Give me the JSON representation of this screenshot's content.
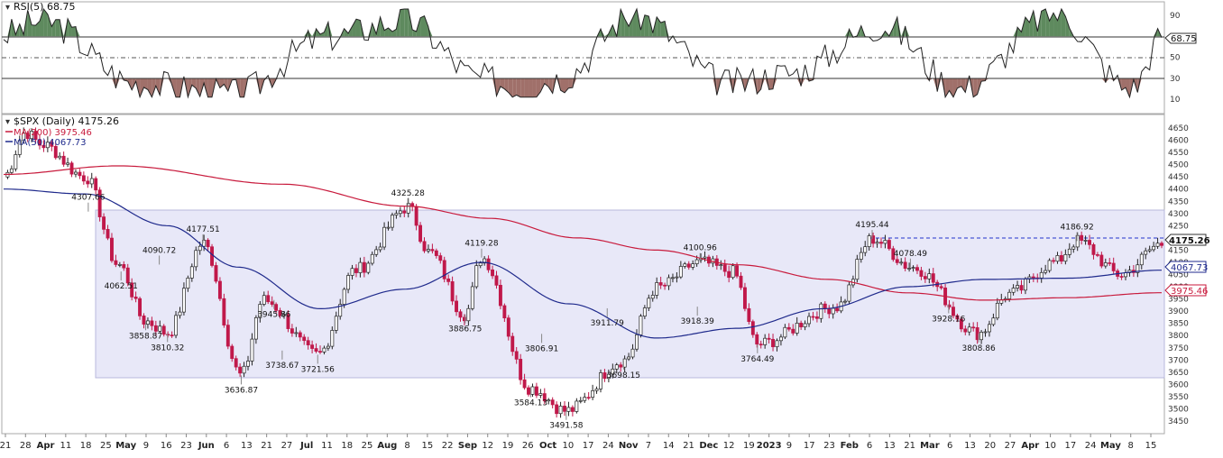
{
  "rsi_panel": {
    "header": "RSI(5) 68.75",
    "last_value": "68.75",
    "ticks": [
      "90",
      "70",
      "50",
      "30",
      "10"
    ]
  },
  "price_panel": {
    "header": "$SPX (Daily) 4175.26",
    "ma200_label": "MA(200) 3975.46",
    "ma50_label": "MA(50) 4067.73",
    "last_price_label": "4175.26",
    "last_ma50_label": "4067.73",
    "last_ma200_label": "3975.46",
    "ticks": [
      "4650",
      "4600",
      "4550",
      "4500",
      "4450",
      "4400",
      "4350",
      "4300",
      "4250",
      "4200",
      "4150",
      "4100",
      "4050",
      "4000",
      "3950",
      "3900",
      "3850",
      "3800",
      "3750",
      "3700",
      "3650",
      "3600",
      "3550",
      "3500",
      "3450"
    ]
  },
  "x_axis_labels": [
    "21",
    "28",
    "Apr",
    "11",
    "18",
    "25",
    "May",
    "9",
    "16",
    "23",
    "Jun",
    "6",
    "13",
    "21",
    "27",
    "Jul",
    "11",
    "18",
    "25",
    "Aug",
    "8",
    "15",
    "22",
    "Sep",
    "12",
    "19",
    "26",
    "Oct",
    "10",
    "17",
    "24",
    "Nov",
    "7",
    "14",
    "21",
    "Dec",
    "12",
    "19",
    "2023",
    "9",
    "17",
    "23",
    "Feb",
    "6",
    "13",
    "21",
    "Mar",
    "6",
    "13",
    "20",
    "27",
    "Apr",
    "10",
    "17",
    "24",
    "May",
    "8",
    "15"
  ],
  "colors": {
    "up": "#ffffff",
    "down": "#c0184a",
    "ma200": "#c81a3c",
    "ma50": "#1f2a8c",
    "band": "#e8e8f8",
    "rsi_over": "#5e8a5e",
    "rsi_under": "#a0706a",
    "resistance": "#2233cc"
  },
  "chart_data": [
    {
      "type": "line",
      "title": "RSI(5) 68.75",
      "ylim": [
        0,
        100
      ],
      "reference_lines": [
        70,
        50,
        30
      ],
      "series": [
        {
          "name": "RSI(5)",
          "x": [
            "Mar 21 2022",
            "Apr 4 2022",
            "May 9 2022",
            "Jun 13 2022",
            "Jul 18 2022",
            "Aug 15 2022",
            "Sep 12 2022",
            "Sep 26 2022",
            "Oct 10 2022",
            "Nov 7 2022",
            "Dec 12 2022",
            "Jan 3 2023",
            "Feb 6 2023",
            "Mar 6 2023",
            "Apr 10 2023",
            "May 8 2023",
            "May 19 2023"
          ],
          "values": [
            72,
            85,
            25,
            15,
            70,
            85,
            30,
            20,
            30,
            90,
            25,
            35,
            80,
            20,
            92,
            20,
            68.75
          ]
        }
      ]
    },
    {
      "type": "line",
      "title": "$SPX (Daily) 4175.26",
      "ylim": [
        3450,
        4650
      ],
      "series": [
        {
          "name": "$SPX",
          "x": [
            "Mar 21 2022",
            "Mar 29 2022",
            "Apr 4 2022",
            "Apr 20 2022",
            "May 2 2022",
            "May 12 2022",
            "May 20 2022",
            "Jun 2 2022",
            "Jun 16 2022",
            "Jun 24 2022",
            "Jul 14 2022",
            "Jul 28 2022",
            "Aug 16 2022",
            "Aug 24 2022",
            "Sep 6 2022",
            "Sep 12 2022",
            "Sep 30 2022",
            "Oct 13 2022",
            "Nov 3 2022",
            "Nov 15 2022",
            "Dec 1 2022",
            "Dec 13 2022",
            "Dec 22 2022",
            "Jan 20 2023",
            "Feb 2 2023",
            "Feb 17 2023",
            "Mar 13 2023",
            "Mar 24 2023",
            "Apr 10 2023",
            "Apr 18 2023",
            "May 4 2023",
            "May 19 2023"
          ],
          "values": [
            4450,
            4632,
            4582,
            4450,
            4090,
            3858.87,
            3810.32,
            4177.51,
            3636.87,
            3945.86,
            3721.56,
            4070,
            4325.28,
            4140,
            3886.75,
            4119.28,
            3584.13,
            3491.58,
            3698.15,
            3995,
            4100.96,
            4060,
            3764.49,
            3918.39,
            4195.44,
            4078.49,
            3808.86,
            3970,
            4100,
            4186.92,
            4050,
            4175.26
          ]
        },
        {
          "name": "MA(200)",
          "x": [
            "Mar 21 2022",
            "May 2 2022",
            "Jul 1 2022",
            "Aug 15 2022",
            "Sep 15 2022",
            "Oct 17 2022",
            "Nov 15 2022",
            "Dec 15 2022",
            "Jan 17 2023",
            "Feb 15 2023",
            "Mar 15 2023",
            "Apr 14 2023",
            "May 19 2023"
          ],
          "values": [
            4460,
            4495,
            4420,
            4330,
            4280,
            4200,
            4150,
            4090,
            4030,
            3975,
            3945,
            3955,
            3975.46
          ]
        },
        {
          "name": "MA(50)",
          "x": [
            "Mar 21 2022",
            "Apr 20 2022",
            "May 20 2022",
            "Jun 15 2022",
            "Jul 15 2022",
            "Aug 15 2022",
            "Sep 12 2022",
            "Oct 14 2022",
            "Nov 15 2022",
            "Dec 15 2022",
            "Jan 15 2023",
            "Feb 15 2023",
            "Mar 15 2023",
            "Apr 14 2023",
            "May 19 2023"
          ],
          "values": [
            4400,
            4380,
            4250,
            4080,
            3910,
            3990,
            4100,
            3930,
            3790,
            3830,
            3910,
            4000,
            4030,
            4035,
            4067.73
          ]
        }
      ],
      "annotations": [
        {
          "x": "Apr 21 2022",
          "value": 4307.66,
          "text": "4307.66"
        },
        {
          "x": "May 3 2022",
          "value": 4062.51,
          "text": "4062.51"
        },
        {
          "x": "May 12 2022",
          "value": 3858.87,
          "text": "3858.87"
        },
        {
          "x": "May 17 2022",
          "value": 4090.72,
          "text": "4090.72"
        },
        {
          "x": "May 20 2022",
          "value": 3810.32,
          "text": "3810.32"
        },
        {
          "x": "Jun 2 2022",
          "value": 4177.51,
          "text": "4177.51"
        },
        {
          "x": "Jun 16 2022",
          "value": 3636.87,
          "text": "3636.87"
        },
        {
          "x": "Jun 28 2022",
          "value": 3945.86,
          "text": "3945.86"
        },
        {
          "x": "Jul 1 2022",
          "value": 3738.67,
          "text": "3738.67"
        },
        {
          "x": "Jul 14 2022",
          "value": 3721.56,
          "text": "3721.56"
        },
        {
          "x": "Aug 16 2022",
          "value": 4325.28,
          "text": "4325.28"
        },
        {
          "x": "Sep 6 2022",
          "value": 3886.75,
          "text": "3886.75"
        },
        {
          "x": "Sep 12 2022",
          "value": 4119.28,
          "text": "4119.28"
        },
        {
          "x": "Sep 30 2022",
          "value": 3584.13,
          "text": "3584.13"
        },
        {
          "x": "Oct 4 2022",
          "value": 3806.91,
          "text": "3806.91"
        },
        {
          "x": "Oct 13 2022",
          "value": 3491.58,
          "text": "3491.58"
        },
        {
          "x": "Nov 3 2022",
          "value": 3698.15,
          "text": "3698.15"
        },
        {
          "x": "Oct 28 2022",
          "value": 3911.79,
          "text": "3911.79"
        },
        {
          "x": "Dec 1 2022",
          "value": 4100.96,
          "text": "4100.96"
        },
        {
          "x": "Nov 30 2022",
          "value": 3918.39,
          "text": "3918.39"
        },
        {
          "x": "Dec 22 2022",
          "value": 3764.49,
          "text": "3764.49"
        },
        {
          "x": "Feb 2 2023",
          "value": 4195.44,
          "text": "4195.44"
        },
        {
          "x": "Feb 16 2023",
          "value": 4078.49,
          "text": "4078.49"
        },
        {
          "x": "Mar 2 2023",
          "value": 3928.16,
          "text": "3928.16"
        },
        {
          "x": "Mar 13 2023",
          "value": 3808.86,
          "text": "3808.86"
        },
        {
          "x": "Apr 18 2023",
          "value": 4186.92,
          "text": "4186.92"
        }
      ]
    }
  ]
}
